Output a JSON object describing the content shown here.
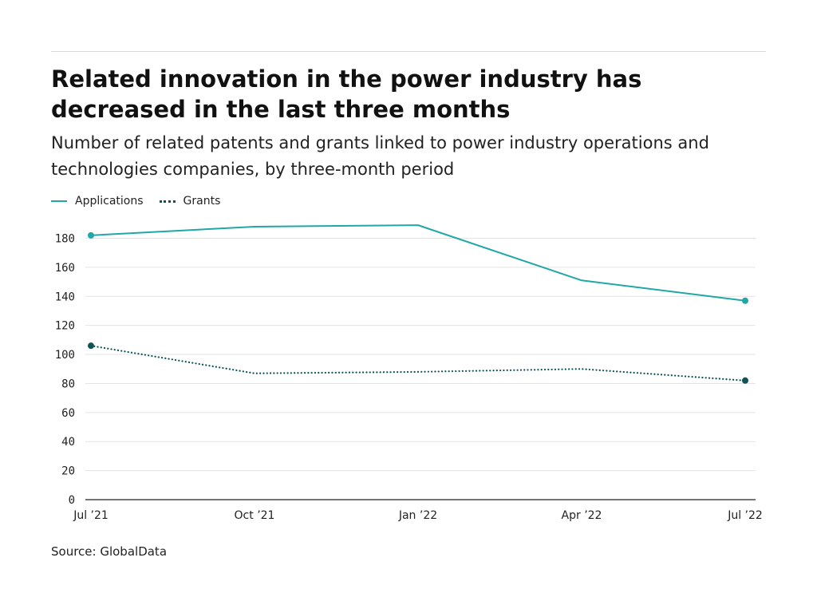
{
  "header": {
    "title": "Related innovation in the power industry has decreased in the last three months",
    "subtitle": "Number of related patents and grants linked to power industry operations and technologies companies, by three-month period"
  },
  "footer": {
    "source": "Source: GlobalData"
  },
  "chart_data": {
    "type": "line",
    "title": "Related innovation in the power industry has decreased in the last three months",
    "subtitle": "Number of related patents and grants linked to power industry operations and technologies companies, by three-month period",
    "categories": [
      "Jul ’21",
      "Oct ’21",
      "Jan ’22",
      "Apr ’22",
      "Jul ’22"
    ],
    "series": [
      {
        "name": "Applications",
        "values": [
          182,
          188,
          189,
          151,
          137
        ],
        "color": "#20a8a6",
        "style": "solid"
      },
      {
        "name": "Grants",
        "values": [
          106,
          87,
          88,
          90,
          82
        ],
        "color": "#0e5457",
        "style": "dotted"
      }
    ],
    "yticks": [
      0,
      20,
      40,
      60,
      80,
      100,
      120,
      140,
      160,
      180
    ],
    "ylim": [
      0,
      190
    ],
    "xlabel": "",
    "ylabel": "",
    "grid": true,
    "legend_position": "top-left"
  }
}
